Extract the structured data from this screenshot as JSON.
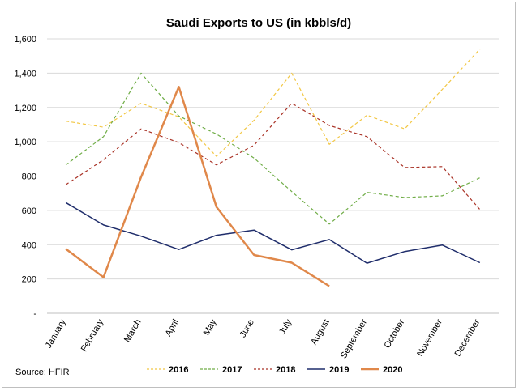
{
  "chart_data": {
    "type": "line",
    "title": "Saudi Exports to US (in kbbls/d)",
    "xlabel": "",
    "ylabel": "",
    "ylim": [
      0,
      1600
    ],
    "yticks": [
      0,
      200,
      400,
      600,
      800,
      1000,
      1200,
      1400,
      1600
    ],
    "ytick_labels": [
      "-",
      "200",
      "400",
      "600",
      "800",
      "1,000",
      "1,200",
      "1,400",
      "1,600"
    ],
    "categories": [
      "January",
      "February",
      "March",
      "April",
      "May",
      "June",
      "July",
      "August",
      "September",
      "October",
      "November",
      "December"
    ],
    "grid": "horizontal",
    "legend_position": "bottom",
    "source": "Source: HFIR",
    "series": [
      {
        "name": "2016",
        "color": "#f2c744",
        "style": "dashed",
        "values": [
          1120,
          1085,
          1225,
          1145,
          915,
          1125,
          1400,
          985,
          1155,
          1075,
          1305,
          1540
        ]
      },
      {
        "name": "2017",
        "color": "#70ad47",
        "style": "dashed",
        "values": [
          865,
          1030,
          1400,
          1150,
          1045,
          905,
          710,
          520,
          705,
          675,
          685,
          790
        ]
      },
      {
        "name": "2018",
        "color": "#a93226",
        "style": "dashed",
        "values": [
          750,
          895,
          1075,
          995,
          865,
          980,
          1225,
          1095,
          1030,
          850,
          855,
          605
        ]
      },
      {
        "name": "2019",
        "color": "#1f2d6b",
        "style": "solid",
        "values": [
          645,
          515,
          450,
          372,
          455,
          485,
          370,
          430,
          292,
          360,
          398,
          295
        ]
      },
      {
        "name": "2020",
        "color": "#e0884a",
        "style": "solid-thick",
        "values": [
          375,
          210,
          795,
          1320,
          620,
          340,
          295,
          158,
          null,
          null,
          null,
          null
        ]
      }
    ]
  }
}
